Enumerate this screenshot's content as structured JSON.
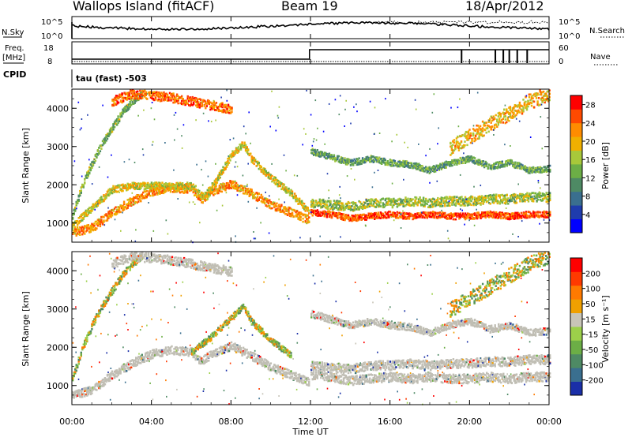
{
  "header": {
    "station": "Wallops Island (fitACF)",
    "beam": "Beam 19",
    "date": "18/Apr/2012"
  },
  "top_panel": {
    "left_label": "N.Sky",
    "right_label": "N.Search",
    "left_ticks": [
      "10^5",
      "10^0"
    ],
    "right_ticks": [
      "10^5",
      "10^0"
    ]
  },
  "mid_panel": {
    "left_label_1": "Freq.",
    "left_label_2": "[MHz]",
    "right_label": "Nave",
    "left_ticks": [
      "18",
      "8"
    ],
    "right_ticks": [
      "60",
      "0"
    ]
  },
  "cpid": {
    "label": "CPID",
    "text": "tau (fast) -503"
  },
  "colors": {
    "power": [
      "#0000ff",
      "#1f3cad",
      "#3a6f8f",
      "#4e8a64",
      "#6cae46",
      "#a8c83a",
      "#f0b000",
      "#ff8c00",
      "#ff4a00",
      "#ff0000"
    ],
    "velocity": [
      "#1a2fa8",
      "#3a6f8f",
      "#4e8a64",
      "#6cae46",
      "#9cd04a",
      "#c8c5b8",
      "#f0a000",
      "#ff7a00",
      "#ff3a00",
      "#ff0000"
    ],
    "ground_scatter": "#c0beb4"
  },
  "chart_data": [
    {
      "type": "heatmap",
      "name": "power",
      "ylabel": "Slant Range [km]",
      "yticks": [
        1000,
        2000,
        3000,
        4000
      ],
      "ylim": [
        500,
        4500
      ],
      "xlim": [
        0,
        24
      ],
      "colorbar": {
        "label": "Power [dB]",
        "ticks": [
          "28",
          "24",
          "20",
          "16",
          "12",
          "8",
          "4"
        ],
        "range": [
          0,
          30
        ]
      },
      "bands": [
        {
          "t": [
            0.0,
            1.0,
            2.0,
            3.0,
            4.0,
            5.0,
            6.0,
            6.5,
            7.0,
            8.0,
            9.0,
            10.0,
            11.0,
            11.9
          ],
          "r": [
            780,
            900,
            1300,
            1600,
            1850,
            1950,
            1900,
            1650,
            1850,
            2050,
            1800,
            1500,
            1300,
            1100
          ],
          "w": 110,
          "level": 22
        },
        {
          "t": [
            0.0,
            2.0,
            3.0,
            4.0,
            5.0,
            6.0,
            6.6,
            7.2,
            8.0,
            8.6,
            9.0,
            10.0,
            11.0,
            11.9
          ],
          "r": [
            950,
            1900,
            2000,
            2000,
            1980,
            2000,
            1700,
            2100,
            2800,
            3100,
            2700,
            2200,
            1800,
            1300
          ],
          "w": 90,
          "level": 18
        },
        {
          "t": [
            0.0,
            0.5,
            1.0,
            1.5,
            2.0,
            2.5,
            3.0,
            3.5
          ],
          "r": [
            1200,
            2000,
            2600,
            3100,
            3500,
            3900,
            4200,
            4400
          ],
          "w": 90,
          "level": 14
        },
        {
          "t": [
            2.0,
            3.0,
            4.0,
            5.0,
            6.0,
            7.0,
            8.0
          ],
          "r": [
            4200,
            4400,
            4350,
            4300,
            4200,
            4100,
            4000
          ],
          "w": 120,
          "level": 24
        },
        {
          "t": [
            12.0,
            13.0,
            14.0,
            15.0,
            16.0,
            17.0,
            18.0,
            19.0,
            20.0,
            21.0,
            22.0,
            23.0,
            24.0
          ],
          "r": [
            1300,
            1250,
            1150,
            1200,
            1250,
            1200,
            1250,
            1200,
            1200,
            1250,
            1200,
            1250,
            1250
          ],
          "w": 80,
          "level": 26
        },
        {
          "t": [
            12.0,
            13.0,
            14.0,
            15.0,
            16.0,
            17.0,
            18.0,
            19.0,
            20.0,
            21.0,
            22.0,
            23.0,
            24.0
          ],
          "r": [
            1550,
            1500,
            1450,
            1550,
            1550,
            1600,
            1550,
            1600,
            1600,
            1650,
            1650,
            1700,
            1700
          ],
          "w": 120,
          "level": 16
        },
        {
          "t": [
            12.0,
            13.0,
            14.0,
            15.0,
            16.0,
            17.0,
            18.0,
            19.0,
            20.0,
            21.0,
            22.0,
            23.0,
            24.0
          ],
          "r": [
            2900,
            2750,
            2600,
            2700,
            2600,
            2550,
            2400,
            2600,
            2700,
            2500,
            2600,
            2400,
            2450
          ],
          "w": 80,
          "level": 12
        },
        {
          "t": [
            19.0,
            20.0,
            21.0,
            22.0,
            23.0,
            24.0
          ],
          "r": [
            3000,
            3300,
            3600,
            3900,
            4200,
            4400
          ],
          "w": 200,
          "level": 20
        }
      ]
    },
    {
      "type": "heatmap",
      "name": "velocity",
      "ylabel": "Slant Range [km]",
      "xlabel": "Time UT",
      "xticks": [
        "00:00",
        "04:00",
        "08:00",
        "12:00",
        "16:00",
        "20:00",
        "00:00"
      ],
      "xtick_hours": [
        0,
        4,
        8,
        12,
        16,
        20,
        24
      ],
      "yticks": [
        1000,
        2000,
        3000,
        4000
      ],
      "ylim": [
        500,
        4500
      ],
      "xlim": [
        0,
        24
      ],
      "colorbar": {
        "label": "Velocity [m s⁻¹]",
        "ticks": [
          "200",
          "100",
          "50",
          "15",
          "-15",
          "-50",
          "-100",
          "-200"
        ]
      },
      "bands": [
        {
          "t": [
            0.0,
            1.0,
            2.0,
            3.0,
            4.0,
            5.0,
            6.0,
            6.5,
            7.0,
            8.0,
            9.0,
            10.0,
            11.0,
            11.9
          ],
          "r": [
            780,
            900,
            1300,
            1600,
            1850,
            1950,
            1900,
            1650,
            1850,
            2050,
            1800,
            1500,
            1300,
            1100
          ],
          "w": 110,
          "gs": true
        },
        {
          "t": [
            0.0,
            0.5,
            1.0,
            1.5,
            2.0,
            2.5,
            3.0,
            3.5
          ],
          "r": [
            1200,
            2000,
            2600,
            3100,
            3500,
            3900,
            4200,
            4400
          ],
          "w": 90,
          "gs": false
        },
        {
          "t": [
            2.0,
            3.0,
            4.0,
            5.0,
            6.0,
            7.0,
            8.0
          ],
          "r": [
            4200,
            4400,
            4350,
            4300,
            4200,
            4100,
            4000
          ],
          "w": 120,
          "gs": true
        },
        {
          "t": [
            6.0,
            7.0,
            8.0,
            8.6,
            9.0,
            10.0,
            11.0
          ],
          "r": [
            1900,
            2300,
            2800,
            3100,
            2700,
            2200,
            1800
          ],
          "w": 80,
          "gs": false
        },
        {
          "t": [
            12.0,
            13.0,
            14.0,
            15.0,
            16.0,
            17.0,
            18.0,
            19.0,
            20.0,
            21.0,
            22.0,
            23.0,
            24.0
          ],
          "r": [
            1300,
            1250,
            1150,
            1200,
            1250,
            1200,
            1250,
            1200,
            1200,
            1250,
            1200,
            1250,
            1250
          ],
          "w": 120,
          "gs": true
        },
        {
          "t": [
            12.0,
            13.0,
            14.0,
            15.0,
            16.0,
            17.0,
            18.0,
            19.0,
            20.0,
            21.0,
            22.0,
            23.0,
            24.0
          ],
          "r": [
            1550,
            1500,
            1450,
            1550,
            1550,
            1600,
            1550,
            1600,
            1600,
            1650,
            1650,
            1700,
            1700
          ],
          "w": 120,
          "gs": true
        },
        {
          "t": [
            12.0,
            13.0,
            14.0,
            15.0,
            16.0,
            17.0,
            18.0,
            19.0,
            20.0,
            21.0,
            22.0,
            23.0,
            24.0
          ],
          "r": [
            2900,
            2750,
            2600,
            2700,
            2600,
            2550,
            2400,
            2600,
            2700,
            2500,
            2600,
            2400,
            2450
          ],
          "w": 90,
          "gs": true
        },
        {
          "t": [
            19.0,
            20.0,
            21.0,
            22.0,
            23.0,
            24.0
          ],
          "r": [
            3000,
            3300,
            3600,
            3900,
            4200,
            4400
          ],
          "w": 200,
          "gs": false
        }
      ]
    }
  ]
}
